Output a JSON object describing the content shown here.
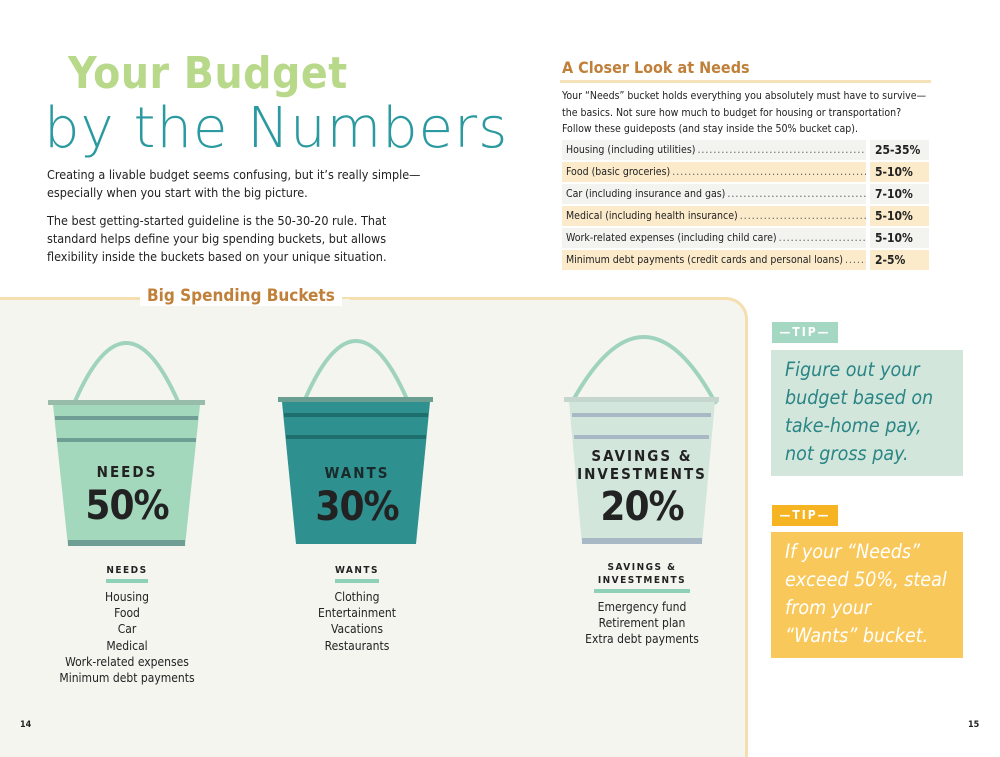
{
  "title": {
    "line1": "Your Budget",
    "line2": "by the Numbers"
  },
  "intro": [
    "Creating a livable budget seems confusing, but it’s really simple—especially when you start with the big picture.",
    "The best getting-started guideline is the 50-30-20 rule. That standard helps define your big spending buckets, but allows flexibility inside the buckets based on your unique situation."
  ],
  "closer_look": {
    "heading": "A Closer Look at Needs",
    "text": "Your “Needs” bucket holds everything you absolutely must have to survive—the basics. Not sure how much to budget for housing or transportation? Follow these guideposts (and stay inside the 50% bucket cap).",
    "rows": [
      {
        "label": "Housing (including utilities)",
        "value": "25-35%"
      },
      {
        "label": "Food (basic groceries)",
        "value": "5-10%"
      },
      {
        "label": "Car (including insurance and gas)",
        "value": "7-10%"
      },
      {
        "label": "Medical (including health insurance)",
        "value": "5-10%"
      },
      {
        "label": "Work-related expenses (including child care)",
        "value": "5-10%"
      },
      {
        "label": "Minimum debt payments (credit cards and personal loans)",
        "value": "2-5%"
      }
    ]
  },
  "buckets_heading": "Big Spending Buckets",
  "buckets": [
    {
      "name": "NEEDS",
      "percent": "50%",
      "list_title": "NEEDS",
      "items": [
        "Housing",
        "Food",
        "Car",
        "Medical",
        "Work-related expenses",
        "Minimum debt payments"
      ],
      "color": "#a3d8bd"
    },
    {
      "name": "WANTS",
      "percent": "30%",
      "list_title": "WANTS",
      "items": [
        "Clothing",
        "Entertainment",
        "Vacations",
        "Restaurants"
      ],
      "color": "#2f9090"
    },
    {
      "name": "SAVINGS & INVESTMENTS",
      "percent": "20%",
      "list_title": "SAVINGS & INVESTMENTS",
      "items": [
        "Emergency fund",
        "Retirement plan",
        "Extra debt payments"
      ],
      "color": "#d2e6dc"
    }
  ],
  "tips": [
    {
      "label": "—TIP—",
      "text": "Figure out your budget based on take-home pay, not gross pay.",
      "color": "#d3e6dc"
    },
    {
      "label": "—TIP—",
      "text": "If your “Needs” exceed 50%, steal from your “Wants” bucket.",
      "color": "#f9c85a"
    }
  ],
  "page_numbers": {
    "left": "14",
    "right": "15"
  }
}
